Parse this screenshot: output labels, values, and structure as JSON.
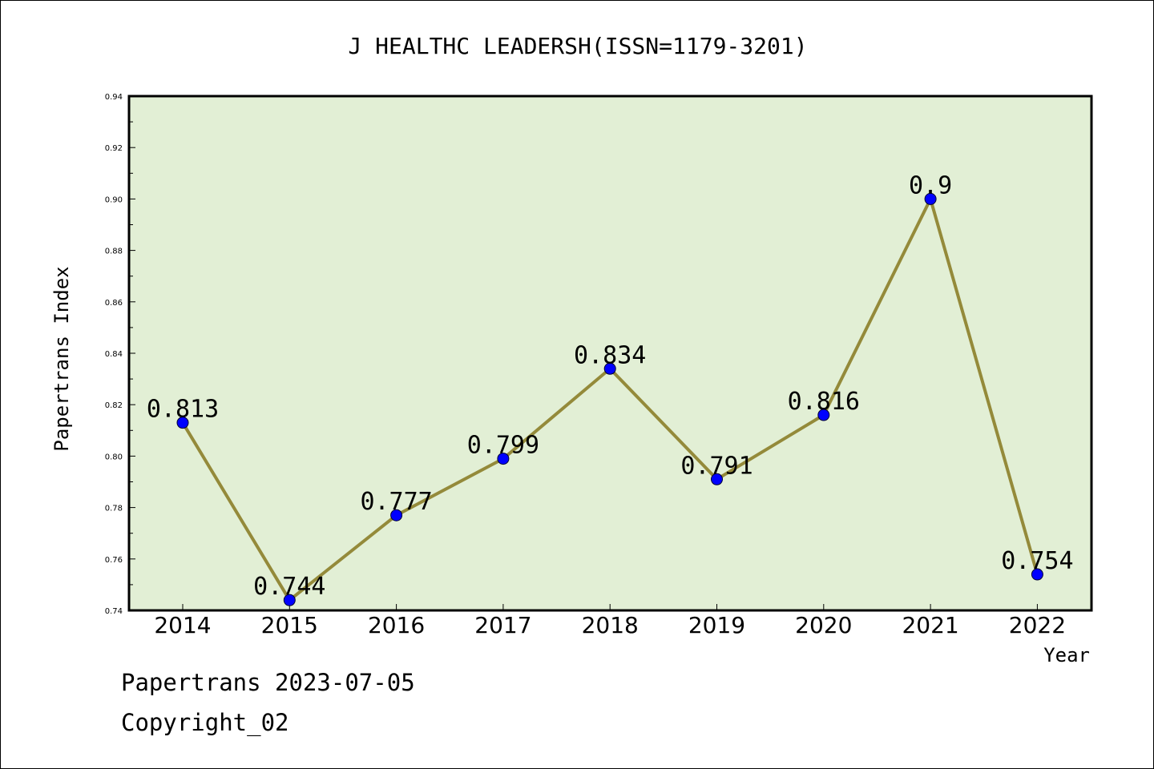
{
  "chart_data": {
    "type": "line",
    "title": "J HEALTHC LEADERSH(ISSN=1179-3201)",
    "xlabel": "Year",
    "ylabel": "Papertrans Index",
    "categories": [
      "2014",
      "2015",
      "2016",
      "2017",
      "2018",
      "2019",
      "2020",
      "2021",
      "2022"
    ],
    "values": [
      0.813,
      0.744,
      0.777,
      0.799,
      0.834,
      0.791,
      0.816,
      0.9,
      0.754
    ],
    "data_labels": [
      "0.813",
      "0.744",
      "0.777",
      "0.799",
      "0.834",
      "0.791",
      "0.816",
      "0.9",
      "0.754"
    ],
    "ylim": [
      0.74,
      0.94
    ],
    "yticks": [
      0.74,
      0.76,
      0.78,
      0.8,
      0.82,
      0.84,
      0.86,
      0.88,
      0.9,
      0.92,
      0.94
    ],
    "ytick_labels": [
      "0.74",
      "0.76",
      "0.78",
      "0.80",
      "0.82",
      "0.84",
      "0.86",
      "0.88",
      "0.90",
      "0.92",
      "0.94"
    ],
    "grid": false,
    "colors": {
      "plot_background": "#e2efd5",
      "line": "#948a3a",
      "marker": "#0000ff"
    }
  },
  "footer": {
    "date_text": "Papertrans 2023-07-05",
    "copyright_text": "Copyright_02"
  }
}
